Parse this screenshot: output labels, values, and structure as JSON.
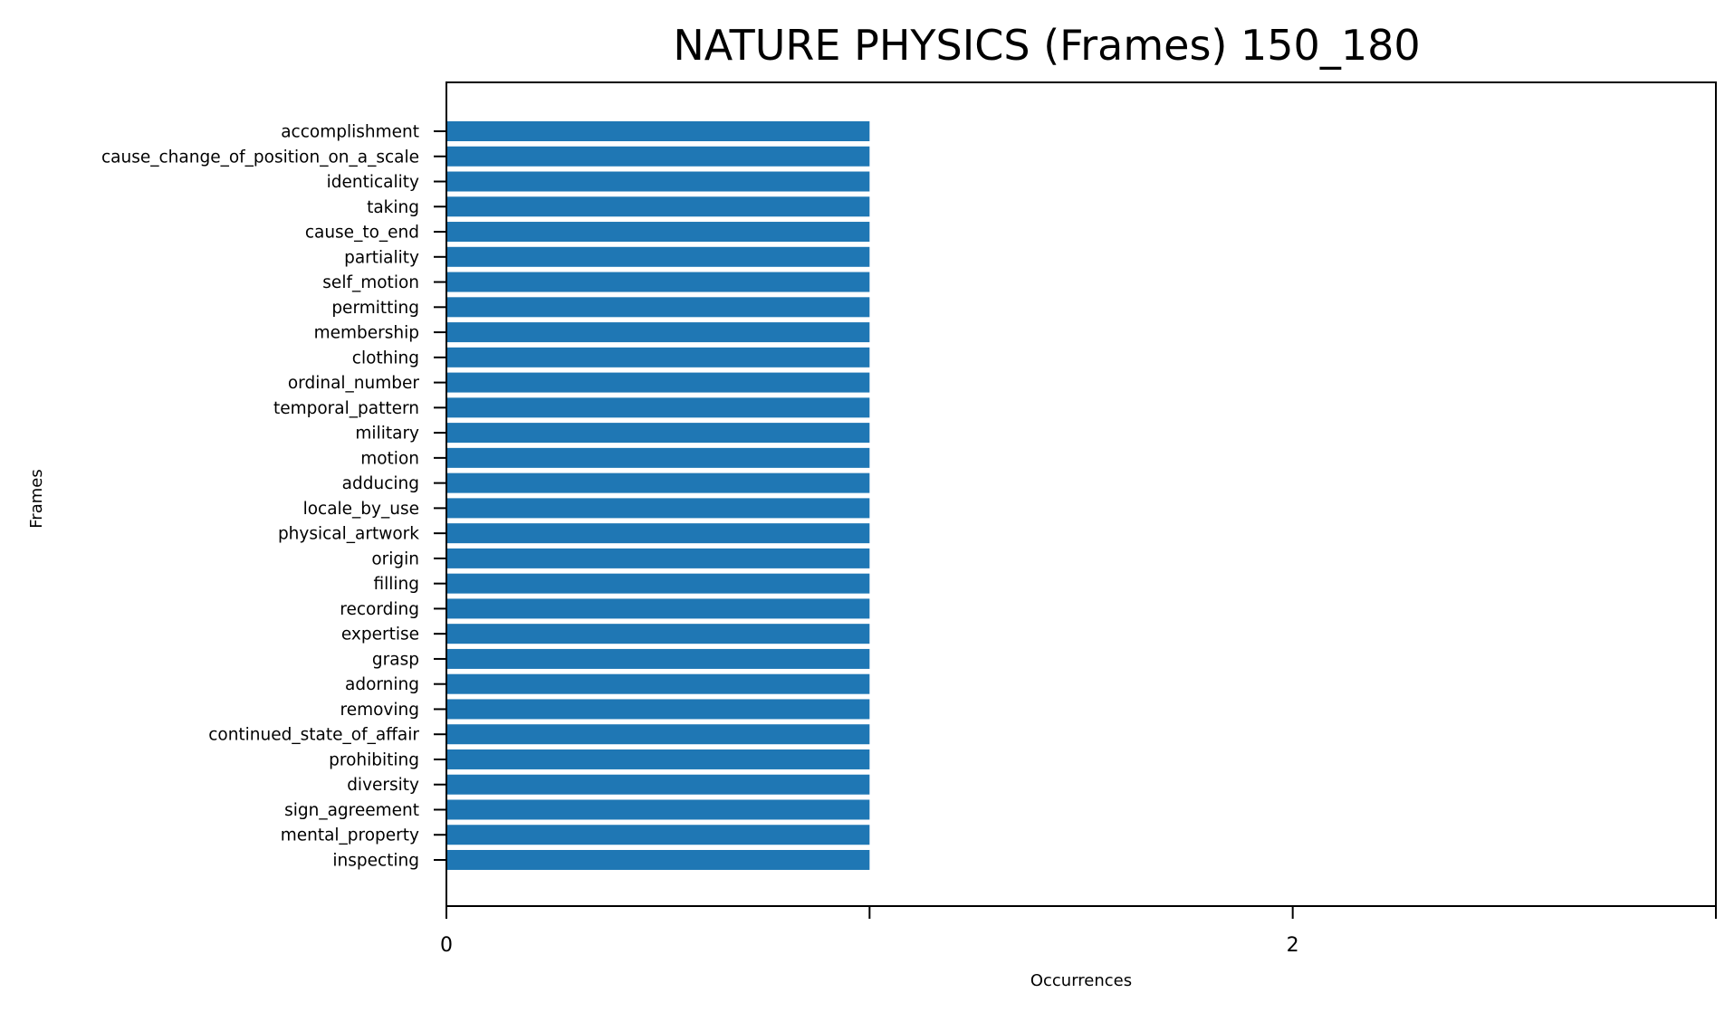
{
  "chart_data": {
    "type": "bar",
    "orientation": "horizontal",
    "title": "NATURE PHYSICS (Frames) 150_180",
    "xlabel": "Occurrences",
    "ylabel": "Frames",
    "categories": [
      "accomplishment",
      "cause_change_of_position_on_a_scale",
      "identicality",
      "taking",
      "cause_to_end",
      "partiality",
      "self_motion",
      "permitting",
      "membership",
      "clothing",
      "ordinal_number",
      "temporal_pattern",
      "military",
      "motion",
      "adducing",
      "locale_by_use",
      "physical_artwork",
      "origin",
      "filling",
      "recording",
      "expertise",
      "grasp",
      "adorning",
      "removing",
      "continued_state_of_affair",
      "prohibiting",
      "diversity",
      "sign_agreement",
      "mental_property",
      "inspecting"
    ],
    "values": [
      1,
      1,
      1,
      1,
      1,
      1,
      1,
      1,
      1,
      1,
      1,
      1,
      1,
      1,
      1,
      1,
      1,
      1,
      1,
      1,
      1,
      1,
      1,
      1,
      1,
      1,
      1,
      1,
      1,
      1
    ],
    "xlim": [
      0,
      3
    ],
    "xticks": [
      0,
      1,
      2,
      3
    ],
    "xtick_labels": [
      "0",
      "",
      "2",
      ""
    ],
    "bar_color": "#1f77b4",
    "grid": false,
    "legend": "none"
  }
}
